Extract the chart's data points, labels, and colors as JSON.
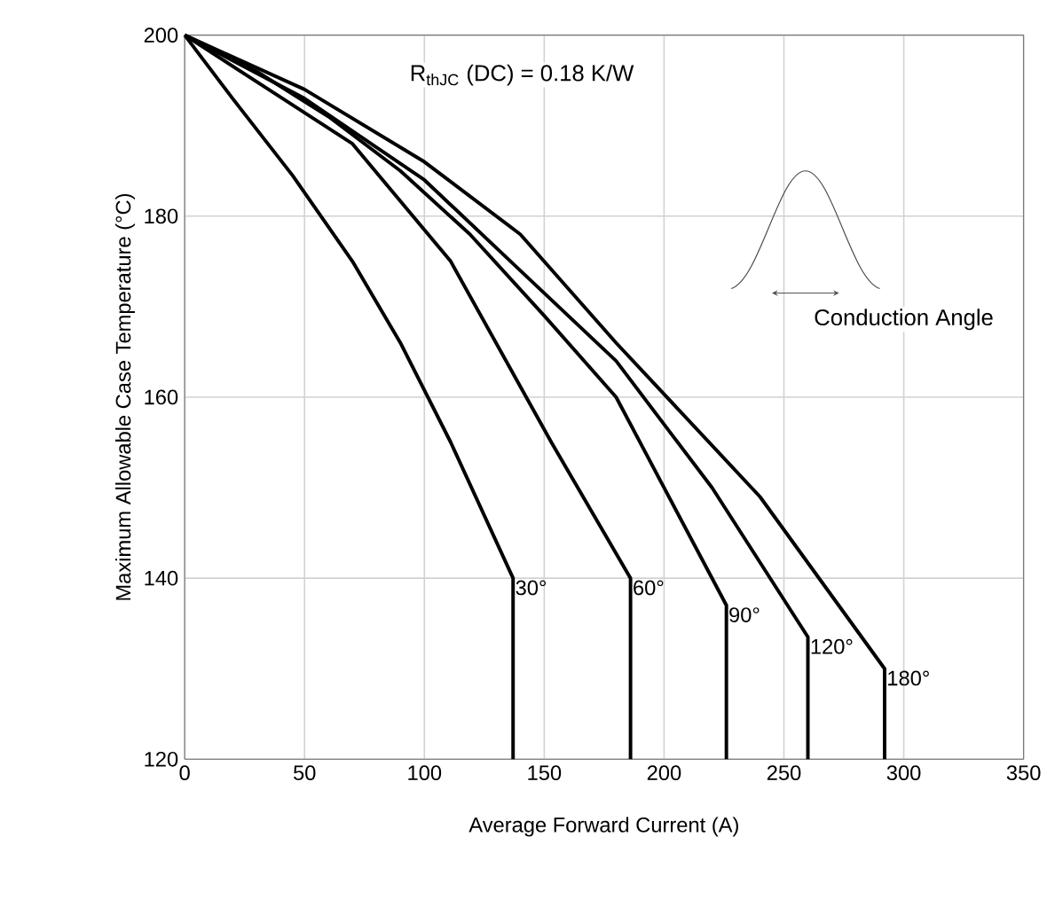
{
  "chart_data": {
    "type": "line",
    "xlabel": "Average Forward Current (A)",
    "ylabel": "Maximum Allowable Case Temperature (°C)",
    "xlim": [
      0,
      350
    ],
    "ylim": [
      120,
      200
    ],
    "xticks": [
      0,
      50,
      100,
      150,
      200,
      250,
      300,
      350
    ],
    "yticks": [
      120,
      140,
      160,
      180,
      200
    ],
    "grid": true,
    "legend": false,
    "marker": "none",
    "line_style": "solid",
    "annotations": [
      "R$_{thJC}$ (DC) = 0.18 K/W",
      "Conduction Angle"
    ],
    "series": [
      {
        "name": "30°",
        "color": "#000000",
        "x": [
          0,
          20,
          45,
          70,
          90,
          111,
          137,
          137
        ],
        "values": [
          200,
          193,
          184.5,
          175,
          166,
          155,
          140,
          120
        ]
      },
      {
        "name": "60°",
        "color": "#000000",
        "x": [
          0,
          35,
          70,
          111,
          153,
          186,
          186
        ],
        "values": [
          200,
          194,
          188,
          175,
          155,
          140,
          120
        ]
      },
      {
        "name": "90°",
        "color": "#000000",
        "x": [
          0,
          30,
          60,
          90,
          119,
          150,
          180,
          226,
          226
        ],
        "values": [
          200,
          196,
          191,
          185,
          178,
          169,
          160,
          137,
          120
        ]
      },
      {
        "name": "120°",
        "color": "#000000",
        "x": [
          0,
          50,
          100,
          140,
          180,
          220,
          260,
          260
        ],
        "values": [
          200,
          193,
          184,
          174,
          164,
          150,
          133.5,
          120
        ]
      },
      {
        "name": "180°",
        "color": "#000000",
        "x": [
          0,
          50,
          100,
          140,
          180,
          240,
          292,
          292
        ],
        "values": [
          200,
          194,
          186,
          178,
          166,
          149,
          130,
          120
        ]
      }
    ]
  }
}
